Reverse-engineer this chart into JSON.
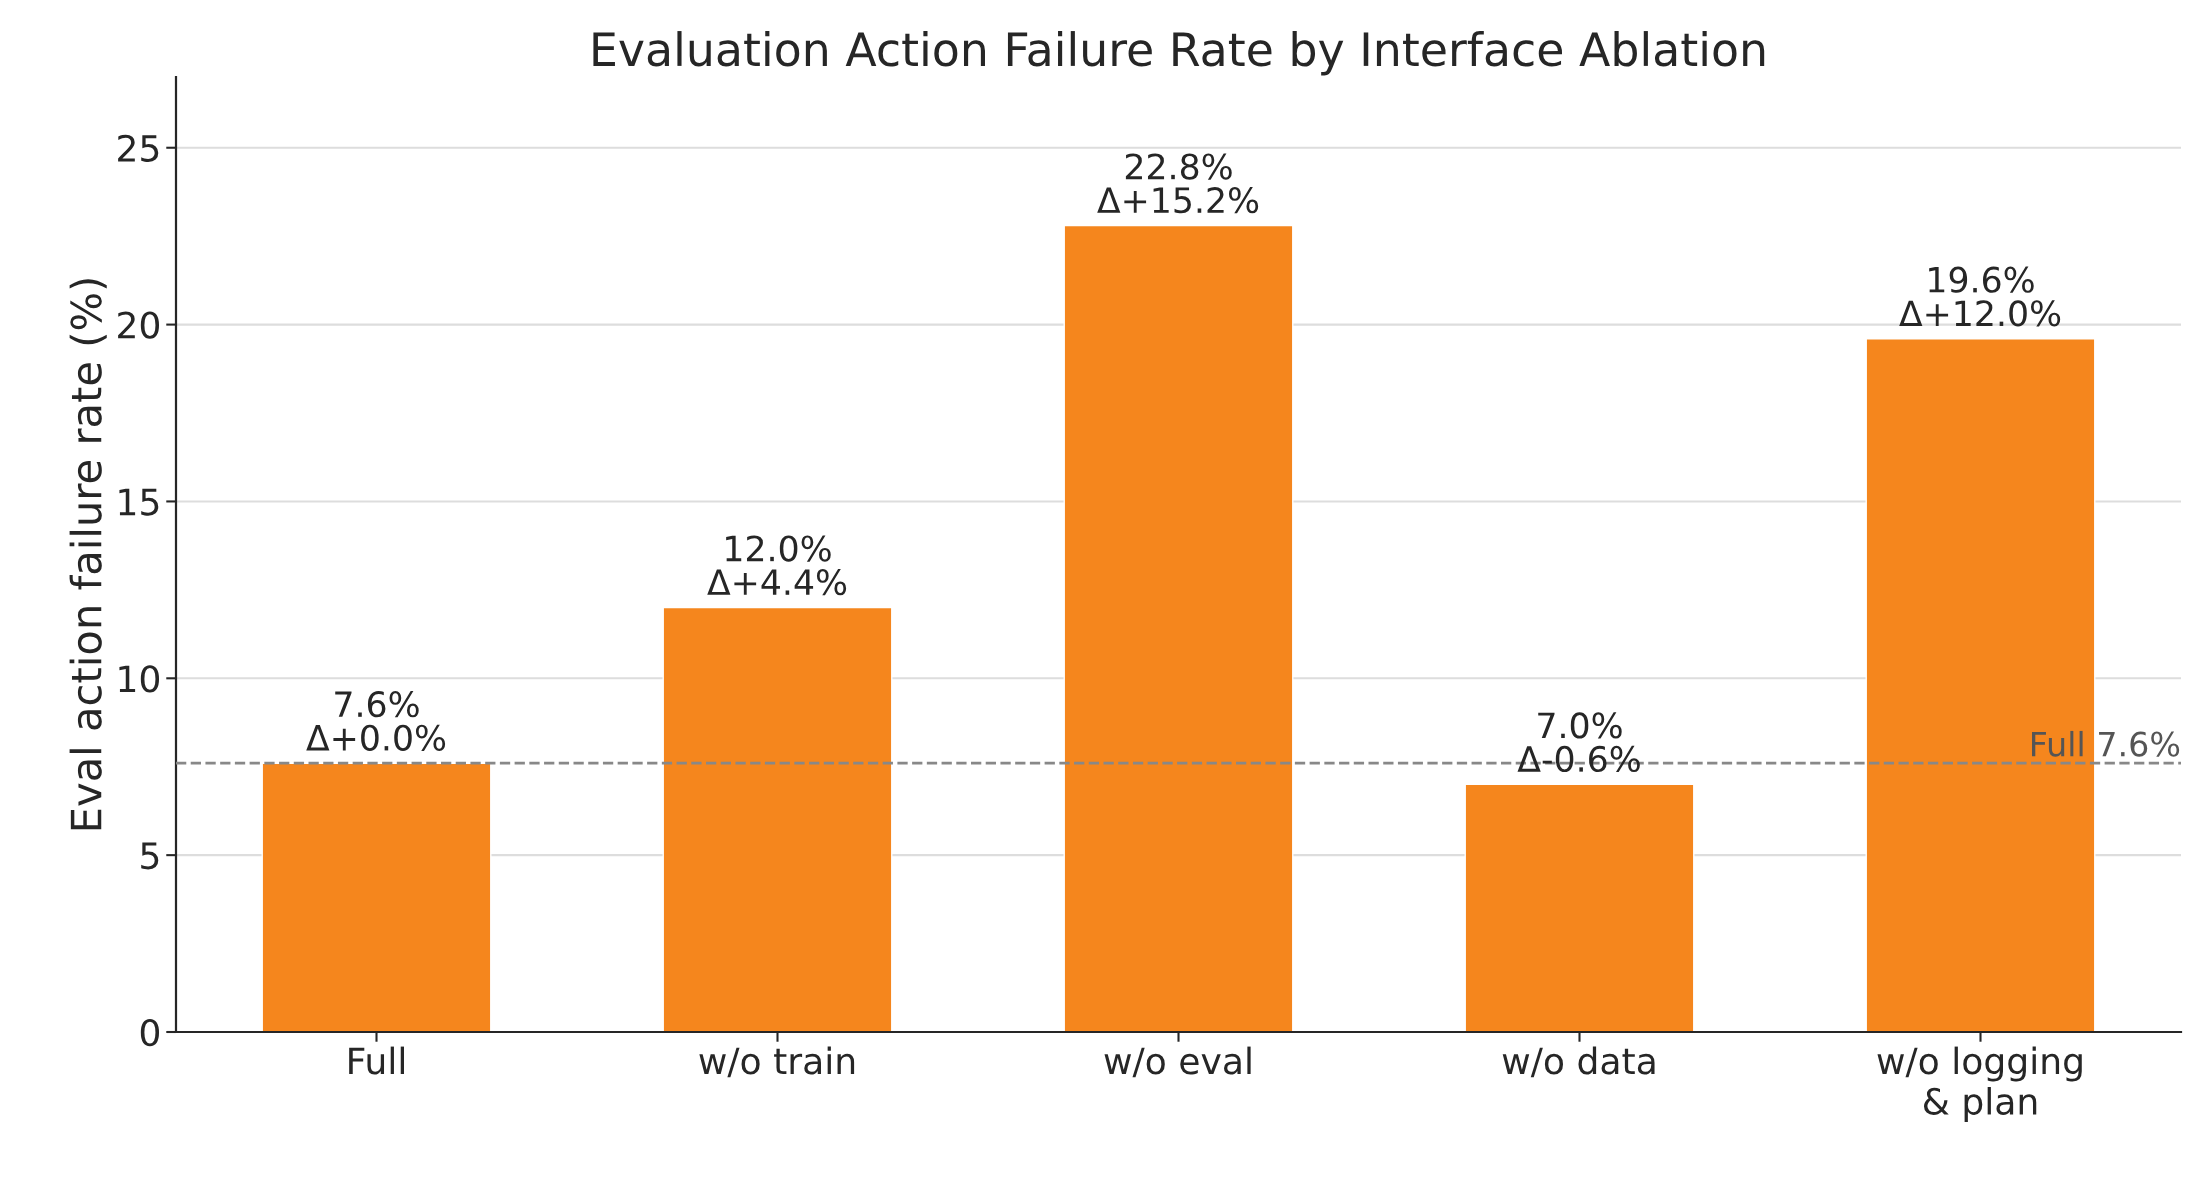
{
  "chart_data": {
    "type": "bar",
    "title": "Evaluation Action Failure Rate by Interface Ablation",
    "ylabel": "Eval action failure rate (%)",
    "categories": [
      "Full",
      "w/o train",
      "w/o eval",
      "w/o data",
      "w/o logging\n& plan"
    ],
    "values": [
      7.6,
      12.0,
      22.8,
      7.0,
      19.6
    ],
    "color": "#f5861d",
    "value_labels": [
      "7.6%\nΔ+0.0%",
      "12.0%\nΔ+4.4%",
      "22.8%\nΔ+15.2%",
      "7.0%\nΔ-0.6%",
      "19.6%\nΔ+12.0%"
    ],
    "ylim": [
      0,
      27
    ],
    "yticks": [
      0,
      5,
      10,
      15,
      20,
      25
    ],
    "grid": "y",
    "ref_lines": [
      {
        "axis": "y",
        "value": 7.6,
        "label": "Full 7.6%",
        "color": "#888888",
        "line_style": "dashed"
      }
    ]
  }
}
